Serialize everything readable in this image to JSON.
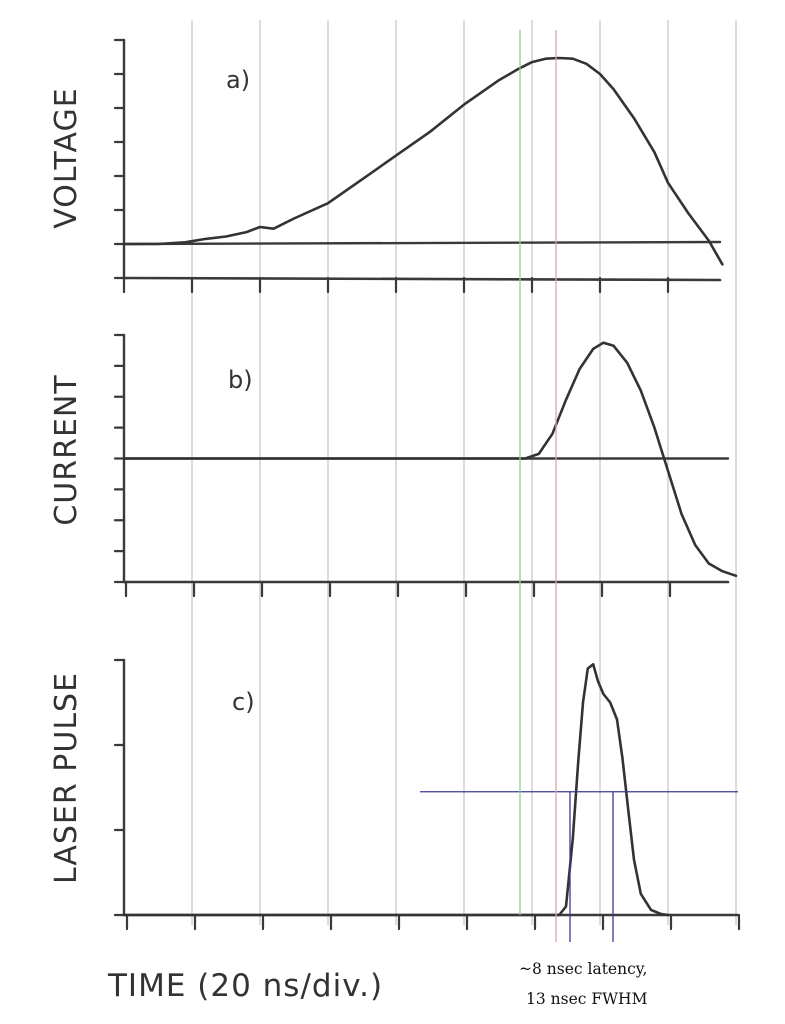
{
  "chart_data": [
    {
      "type": "line",
      "panel_label": "a)",
      "ylabel": "VOLTAGE",
      "xlabel": "",
      "x_unit": "div",
      "xlim": [
        0,
        9
      ],
      "ylim": [
        -1,
        6
      ],
      "y_divisions": 7,
      "baseline": 0,
      "grid": true,
      "series": [
        {
          "x": [
            0,
            0.5,
            0.9,
            1.2,
            1.5,
            1.8,
            2.0,
            2.2,
            2.5,
            3.0,
            3.5,
            4.0,
            4.5,
            5.0,
            5.5,
            5.8,
            6.0,
            6.2,
            6.4,
            6.6,
            6.8,
            7.0,
            7.2,
            7.5,
            7.8,
            8.0,
            8.3,
            8.6,
            8.8
          ],
          "y": [
            0,
            0,
            0.05,
            0.15,
            0.22,
            0.35,
            0.5,
            0.45,
            0.75,
            1.2,
            1.9,
            2.6,
            3.3,
            4.1,
            4.8,
            5.15,
            5.35,
            5.45,
            5.47,
            5.45,
            5.3,
            5.0,
            4.55,
            3.7,
            2.7,
            1.8,
            0.9,
            0.1,
            -0.6
          ]
        }
      ]
    },
    {
      "type": "line",
      "panel_label": "b)",
      "ylabel": "CURRENT",
      "xlabel": "",
      "x_unit": "div",
      "xlim": [
        0,
        9
      ],
      "ylim": [
        -4,
        4
      ],
      "y_divisions": 8,
      "baseline": 0,
      "grid": true,
      "series": [
        {
          "x": [
            0,
            5.9,
            6.1,
            6.3,
            6.5,
            6.7,
            6.9,
            7.05,
            7.2,
            7.4,
            7.6,
            7.8,
            8.0,
            8.2,
            8.4,
            8.6,
            8.8,
            9.0
          ],
          "y": [
            0,
            0,
            0.15,
            0.8,
            1.9,
            2.9,
            3.55,
            3.75,
            3.65,
            3.1,
            2.2,
            1.0,
            -0.4,
            -1.8,
            -2.8,
            -3.4,
            -3.65,
            -3.8
          ]
        }
      ]
    },
    {
      "type": "line",
      "panel_label": "c)",
      "ylabel": "LASER PULSE",
      "xlabel": "TIME  (20 ns/div.)",
      "x_unit": "div",
      "xlim": [
        0,
        9
      ],
      "ylim": [
        0,
        3
      ],
      "y_divisions": 3,
      "half_max": 1.45,
      "grid": true,
      "series": [
        {
          "x": [
            0,
            6.4,
            6.5,
            6.6,
            6.68,
            6.75,
            6.82,
            6.9,
            6.97,
            7.05,
            7.15,
            7.25,
            7.33,
            7.42,
            7.5,
            7.6,
            7.75,
            7.9,
            8.0
          ],
          "y": [
            0,
            0,
            0.1,
            0.9,
            1.8,
            2.5,
            2.9,
            2.95,
            2.75,
            2.6,
            2.5,
            2.3,
            1.85,
            1.2,
            0.65,
            0.25,
            0.06,
            0.01,
            0
          ]
        }
      ]
    }
  ],
  "markers": [
    {
      "name": "green-marker",
      "color": "#8fcf8f"
    },
    {
      "name": "red-marker",
      "color": "#d8a8a8"
    },
    {
      "name": "fwhm-marker",
      "color": "#3a3a9a"
    }
  ],
  "annotation": {
    "line1": "~8 nsec latency,",
    "line2": "13 nsec FWHM"
  }
}
